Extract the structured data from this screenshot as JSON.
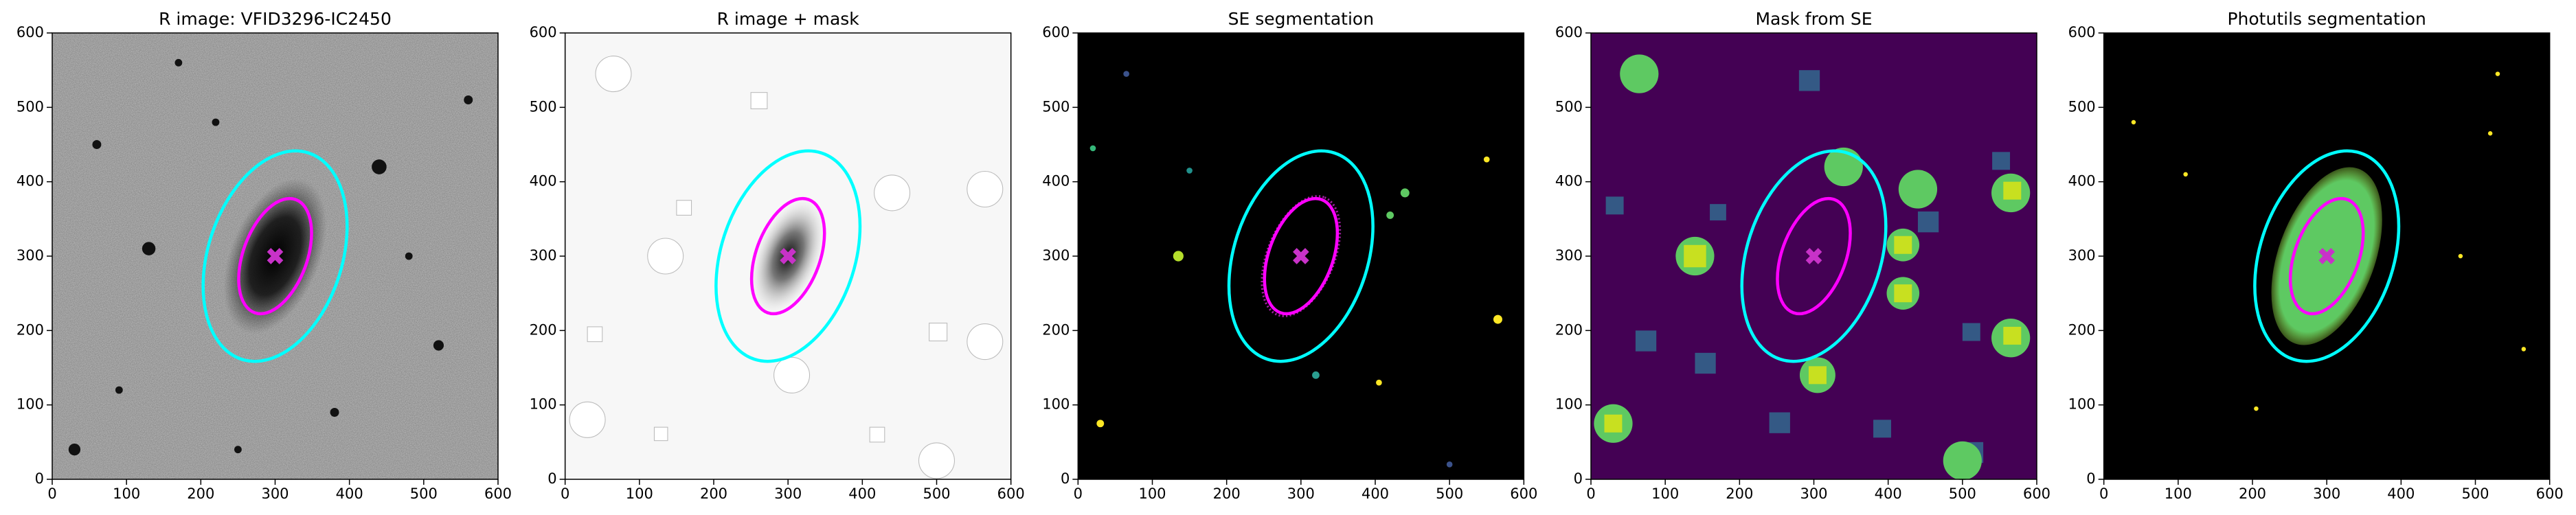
{
  "chart_data": [
    {
      "type": "image",
      "title": "R image: VFID3296-IC2450",
      "xlim": [
        0,
        600
      ],
      "ylim": [
        0,
        600
      ],
      "xticks": [
        0,
        100,
        200,
        300,
        400,
        500,
        600
      ],
      "yticks": [
        0,
        100,
        200,
        300,
        400,
        500,
        600
      ],
      "ellipses": [
        {
          "x": 300,
          "y": 300,
          "a": 146,
          "b": 90,
          "angle": 72,
          "color": "#00ffff"
        },
        {
          "x": 300,
          "y": 300,
          "a": 81,
          "b": 43,
          "angle": 70,
          "color": "#ff00ff"
        }
      ],
      "marker": {
        "x": 300,
        "y": 300,
        "color": "#c832c8"
      }
    },
    {
      "type": "image",
      "title": "R image + mask",
      "xlim": [
        0,
        600
      ],
      "ylim": [
        0,
        600
      ],
      "xticks": [
        0,
        100,
        200,
        300,
        400,
        500,
        600
      ],
      "yticks": [
        0,
        100,
        200,
        300,
        400,
        500,
        600
      ],
      "ellipses": [
        {
          "x": 300,
          "y": 300,
          "a": 146,
          "b": 90,
          "angle": 72,
          "color": "#00ffff"
        },
        {
          "x": 300,
          "y": 300,
          "a": 81,
          "b": 43,
          "angle": 70,
          "color": "#ff00ff"
        }
      ],
      "marker": {
        "x": 300,
        "y": 300,
        "color": "#c832c8"
      }
    },
    {
      "type": "image",
      "title": "SE segmentation",
      "xlim": [
        0,
        600
      ],
      "ylim": [
        0,
        600
      ],
      "xticks": [
        0,
        100,
        200,
        300,
        400,
        500,
        600
      ],
      "yticks": [
        0,
        100,
        200,
        300,
        400,
        500,
        600
      ],
      "ellipses": [
        {
          "x": 300,
          "y": 300,
          "a": 146,
          "b": 90,
          "angle": 72,
          "color": "#00ffff"
        },
        {
          "x": 300,
          "y": 300,
          "a": 81,
          "b": 43,
          "angle": 70,
          "color": "#ff00ff"
        }
      ],
      "marker": {
        "x": 300,
        "y": 300,
        "color": "#c832c8"
      }
    },
    {
      "type": "image",
      "title": "Mask from SE",
      "xlim": [
        0,
        600
      ],
      "ylim": [
        0,
        600
      ],
      "xticks": [
        0,
        100,
        200,
        300,
        400,
        500,
        600
      ],
      "yticks": [
        0,
        100,
        200,
        300,
        400,
        500,
        600
      ],
      "ellipses": [
        {
          "x": 300,
          "y": 300,
          "a": 146,
          "b": 90,
          "angle": 72,
          "color": "#00ffff"
        },
        {
          "x": 300,
          "y": 300,
          "a": 81,
          "b": 43,
          "angle": 70,
          "color": "#ff00ff"
        }
      ],
      "marker": {
        "x": 300,
        "y": 300,
        "color": "#c832c8"
      }
    },
    {
      "type": "image",
      "title": "Photutils segmentation",
      "xlim": [
        0,
        600
      ],
      "ylim": [
        0,
        600
      ],
      "xticks": [
        0,
        100,
        200,
        300,
        400,
        500,
        600
      ],
      "yticks": [
        0,
        100,
        200,
        300,
        400,
        500,
        600
      ],
      "ellipses": [
        {
          "x": 300,
          "y": 300,
          "a": 146,
          "b": 90,
          "angle": 72,
          "color": "#00ffff"
        },
        {
          "x": 300,
          "y": 300,
          "a": 81,
          "b": 43,
          "angle": 70,
          "color": "#ff00ff"
        }
      ],
      "marker": {
        "x": 300,
        "y": 300,
        "color": "#c832c8"
      }
    }
  ]
}
